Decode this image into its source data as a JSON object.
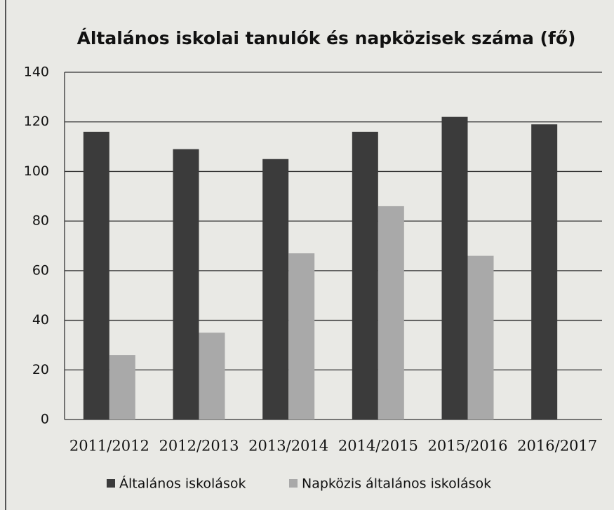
{
  "chart_data": {
    "type": "bar",
    "title": "Általános iskolai tanulók és napközisek száma (fő)",
    "categories": [
      "2011/2012",
      "2012/2013",
      "2013/2014",
      "2014/2015",
      "2015/2016",
      "2016/2017"
    ],
    "series": [
      {
        "name": "Általános iskolások",
        "color": "#3b3b3b",
        "values": [
          116,
          109,
          105,
          116,
          122,
          119
        ]
      },
      {
        "name": "Napközis általános iskolások",
        "color": "#a9a9a9",
        "values": [
          26,
          35,
          67,
          86,
          66,
          null
        ]
      }
    ],
    "ylim": [
      0,
      140
    ],
    "yticks": [
      0,
      20,
      40,
      60,
      80,
      100,
      120,
      140
    ],
    "grid": true,
    "legend": "bottom"
  }
}
